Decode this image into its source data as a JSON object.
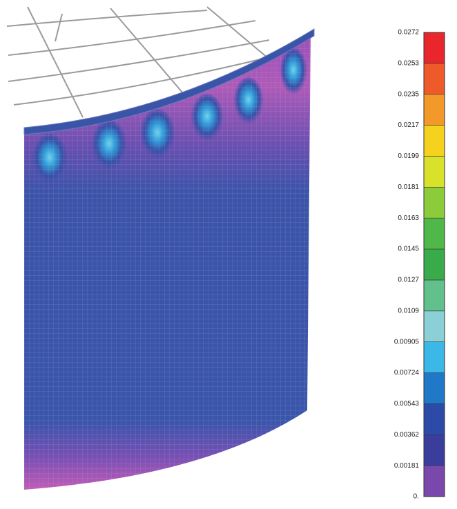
{
  "legend": {
    "labels": [
      "0.0272",
      "0.0253",
      "0.0235",
      "0.0217",
      "0.0199",
      "0.0181",
      "0.0163",
      "0.0145",
      "0.0127",
      "0.0109",
      "0.00905",
      "0.00724",
      "0.00543",
      "0.00362",
      "0.00181",
      "0."
    ]
  }
}
